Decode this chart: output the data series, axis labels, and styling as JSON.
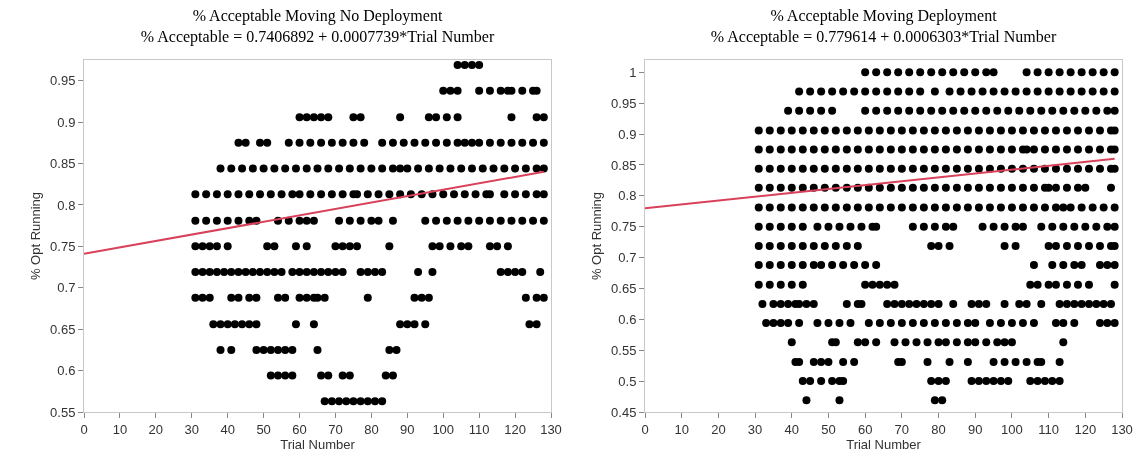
{
  "chart_data": [
    {
      "type": "scatter",
      "title": "% Acceptable Moving No Deployment",
      "subtitle": "% Acceptable = 0.7406892 + 0.0007739*Trial Number",
      "xlabel": "Trial Number",
      "ylabel": "% Opt Running",
      "marker": "circle",
      "legend": false,
      "grid": false,
      "xlim": [
        0,
        130
      ],
      "xticks": [
        0,
        10,
        20,
        30,
        40,
        50,
        60,
        70,
        80,
        90,
        100,
        110,
        120,
        130
      ],
      "ylim": [
        0.55,
        0.975
      ],
      "yticks": [
        0.55,
        0.6,
        0.65,
        0.7,
        0.75,
        0.8,
        0.85,
        0.9,
        0.95
      ],
      "series": [
        {
          "color": "#000000",
          "x": [
            104,
            106,
            108,
            110
          ],
          "values": [
            0.969,
            0.969,
            0.969,
            0.969
          ]
        },
        {
          "color": "#000000",
          "x": [
            100,
            102,
            104,
            110,
            113,
            116,
            118,
            119,
            122,
            125,
            126
          ],
          "values": [
            0.938,
            0.938,
            0.938,
            0.938,
            0.938,
            0.938,
            0.938,
            0.938,
            0.938,
            0.938,
            0.938
          ]
        },
        {
          "color": "#000000",
          "x": [
            60,
            62,
            64,
            66,
            68,
            75,
            77,
            88,
            96,
            98,
            101,
            104,
            119,
            126,
            128
          ],
          "values": [
            0.906,
            0.906,
            0.906,
            0.906,
            0.906,
            0.906,
            0.906,
            0.906,
            0.906,
            0.906,
            0.906,
            0.906,
            0.906,
            0.906,
            0.906
          ]
        },
        {
          "color": "#000000",
          "x": [
            43,
            45,
            49,
            51,
            57,
            60,
            63,
            66,
            69,
            72,
            75,
            78,
            83,
            86,
            89,
            92,
            95,
            98,
            101,
            104,
            106,
            108,
            110,
            113,
            116,
            119,
            122,
            125,
            128
          ],
          "values": [
            0.875,
            0.875,
            0.875,
            0.875,
            0.875,
            0.875,
            0.875,
            0.875,
            0.875,
            0.875,
            0.875,
            0.875,
            0.875,
            0.875,
            0.875,
            0.875,
            0.875,
            0.875,
            0.875,
            0.875,
            0.875,
            0.875,
            0.875,
            0.875,
            0.875,
            0.875,
            0.875,
            0.875,
            0.875
          ]
        },
        {
          "color": "#000000",
          "x": [
            38,
            41,
            44,
            47,
            50,
            53,
            56,
            59,
            62,
            65,
            68,
            71,
            74,
            77,
            80,
            83,
            86,
            88,
            90,
            93,
            96,
            99,
            102,
            105,
            108,
            111,
            114,
            117,
            120,
            123,
            126,
            128
          ],
          "values": [
            0.844,
            0.844,
            0.844,
            0.844,
            0.844,
            0.844,
            0.844,
            0.844,
            0.844,
            0.844,
            0.844,
            0.844,
            0.844,
            0.844,
            0.844,
            0.844,
            0.844,
            0.844,
            0.844,
            0.844,
            0.844,
            0.844,
            0.844,
            0.844,
            0.844,
            0.844,
            0.844,
            0.844,
            0.844,
            0.844,
            0.844,
            0.844
          ]
        },
        {
          "color": "#000000",
          "x": [
            31,
            34,
            37,
            40,
            43,
            46,
            49,
            52,
            55,
            58,
            60,
            63,
            66,
            69,
            72,
            75,
            76,
            79,
            82,
            85,
            88,
            91,
            94,
            97,
            100,
            103,
            106,
            109,
            112,
            113,
            117,
            120,
            123,
            126,
            128
          ],
          "values": [
            0.813,
            0.813,
            0.813,
            0.813,
            0.813,
            0.813,
            0.813,
            0.813,
            0.813,
            0.813,
            0.813,
            0.813,
            0.813,
            0.813,
            0.813,
            0.813,
            0.813,
            0.813,
            0.813,
            0.813,
            0.813,
            0.813,
            0.813,
            0.813,
            0.813,
            0.813,
            0.813,
            0.813,
            0.813,
            0.813,
            0.813,
            0.813,
            0.813,
            0.813,
            0.813
          ]
        },
        {
          "color": "#000000",
          "x": [
            31,
            34,
            37,
            40,
            43,
            46,
            48,
            54,
            57,
            60,
            62,
            64,
            71,
            74,
            77,
            80,
            82,
            86,
            95,
            98,
            101,
            104,
            107,
            110,
            113,
            116,
            119,
            122,
            125,
            128
          ],
          "values": [
            0.781,
            0.781,
            0.781,
            0.781,
            0.781,
            0.781,
            0.781,
            0.781,
            0.781,
            0.781,
            0.781,
            0.781,
            0.781,
            0.781,
            0.781,
            0.781,
            0.781,
            0.781,
            0.781,
            0.781,
            0.781,
            0.781,
            0.781,
            0.781,
            0.781,
            0.781,
            0.781,
            0.781,
            0.781,
            0.781
          ]
        },
        {
          "color": "#000000",
          "x": [
            31,
            33,
            35,
            37,
            40,
            51,
            53,
            59,
            62,
            70,
            72,
            74,
            76,
            85,
            97,
            99,
            102,
            105,
            107,
            113,
            115,
            118
          ],
          "values": [
            0.75,
            0.75,
            0.75,
            0.75,
            0.75,
            0.75,
            0.75,
            0.75,
            0.75,
            0.75,
            0.75,
            0.75,
            0.75,
            0.75,
            0.75,
            0.75,
            0.75,
            0.75,
            0.75,
            0.75,
            0.75,
            0.75
          ]
        },
        {
          "color": "#000000",
          "x": [
            31,
            33,
            35,
            37,
            39,
            41,
            43,
            45,
            47,
            49,
            51,
            53,
            55,
            58,
            60,
            62,
            64,
            66,
            68,
            70,
            72,
            77,
            79,
            81,
            83,
            93,
            97,
            116,
            118,
            120,
            122,
            127
          ],
          "values": [
            0.719,
            0.719,
            0.719,
            0.719,
            0.719,
            0.719,
            0.719,
            0.719,
            0.719,
            0.719,
            0.719,
            0.719,
            0.719,
            0.719,
            0.719,
            0.719,
            0.719,
            0.719,
            0.719,
            0.719,
            0.719,
            0.719,
            0.719,
            0.719,
            0.719,
            0.719,
            0.719,
            0.719,
            0.719,
            0.719,
            0.719,
            0.719
          ]
        },
        {
          "color": "#000000",
          "x": [
            31,
            33,
            35,
            41,
            43,
            46,
            48,
            54,
            56,
            60,
            62,
            64,
            65,
            67,
            79,
            92,
            94,
            96,
            123,
            126,
            128
          ],
          "values": [
            0.688,
            0.688,
            0.688,
            0.688,
            0.688,
            0.688,
            0.688,
            0.688,
            0.688,
            0.688,
            0.688,
            0.688,
            0.688,
            0.688,
            0.688,
            0.688,
            0.688,
            0.688,
            0.688,
            0.688,
            0.688
          ]
        },
        {
          "color": "#000000",
          "x": [
            36,
            38,
            40,
            42,
            44,
            46,
            48,
            59,
            64,
            88,
            90,
            92,
            95,
            124,
            126
          ],
          "values": [
            0.656,
            0.656,
            0.656,
            0.656,
            0.656,
            0.656,
            0.656,
            0.656,
            0.656,
            0.656,
            0.656,
            0.656,
            0.656,
            0.656,
            0.656
          ]
        },
        {
          "color": "#000000",
          "x": [
            38,
            41,
            48,
            50,
            52,
            54,
            56,
            58,
            65,
            85,
            87
          ],
          "values": [
            0.625,
            0.625,
            0.625,
            0.625,
            0.625,
            0.625,
            0.625,
            0.625,
            0.625,
            0.625,
            0.625
          ]
        },
        {
          "color": "#000000",
          "x": [
            52,
            54,
            56,
            58,
            66,
            68,
            72,
            74,
            84,
            86
          ],
          "values": [
            0.594,
            0.594,
            0.594,
            0.594,
            0.594,
            0.594,
            0.594,
            0.594,
            0.594,
            0.594
          ]
        },
        {
          "color": "#000000",
          "x": [
            67,
            69,
            71,
            73,
            75,
            77,
            79,
            81,
            83
          ],
          "values": [
            0.563,
            0.563,
            0.563,
            0.563,
            0.563,
            0.563,
            0.563,
            0.563,
            0.563
          ]
        },
        {
          "type": "line",
          "color": "#d9405a",
          "line_style": "solid",
          "marker": "none",
          "x": [
            0,
            128
          ],
          "values": [
            0.741,
            0.84
          ]
        }
      ]
    },
    {
      "type": "scatter",
      "title": "% Acceptable Moving Deployment",
      "subtitle": "% Acceptable = 0.779614 + 0.0006303*Trial Number",
      "xlabel": "Trial Number",
      "ylabel": "% Opt Running",
      "marker": "circle",
      "legend": false,
      "grid": false,
      "xlim": [
        0,
        130
      ],
      "xticks": [
        0,
        10,
        20,
        30,
        40,
        50,
        60,
        70,
        80,
        90,
        100,
        110,
        120,
        130
      ],
      "ylim": [
        0.45,
        1.02
      ],
      "yticks": [
        0.45,
        0.5,
        0.55,
        0.6,
        0.65,
        0.7,
        0.75,
        0.8,
        0.85,
        0.9,
        0.95,
        1
      ],
      "series": [
        {
          "color": "#000000",
          "x": [
            60,
            63,
            66,
            69,
            72,
            75,
            78,
            81,
            84,
            87,
            90,
            93,
            95,
            104,
            107,
            110,
            113,
            116,
            119,
            122,
            125,
            128
          ],
          "values": [
            1,
            1,
            1,
            1,
            1,
            1,
            1,
            1,
            1,
            1,
            1,
            1,
            1,
            1,
            1,
            1,
            1,
            1,
            1,
            1,
            1,
            1
          ]
        },
        {
          "color": "#000000",
          "x": [
            42,
            45,
            48,
            51,
            54,
            57,
            60,
            63,
            66,
            69,
            72,
            75,
            79,
            83,
            86,
            89,
            92,
            95,
            98,
            101,
            104,
            107,
            110,
            113,
            116,
            119,
            122,
            125,
            128
          ],
          "values": [
            0.969,
            0.969,
            0.969,
            0.969,
            0.969,
            0.969,
            0.969,
            0.969,
            0.969,
            0.969,
            0.969,
            0.969,
            0.969,
            0.969,
            0.969,
            0.969,
            0.969,
            0.969,
            0.969,
            0.969,
            0.969,
            0.969,
            0.969,
            0.969,
            0.969,
            0.969,
            0.969,
            0.969,
            0.969
          ]
        },
        {
          "color": "#000000",
          "x": [
            39,
            42,
            45,
            48,
            51,
            60,
            63,
            66,
            69,
            72,
            75,
            78,
            81,
            84,
            87,
            90,
            93,
            96,
            99,
            102,
            105,
            108,
            111,
            114,
            117,
            120,
            123,
            126,
            128
          ],
          "values": [
            0.938,
            0.938,
            0.938,
            0.938,
            0.938,
            0.938,
            0.938,
            0.938,
            0.938,
            0.938,
            0.938,
            0.938,
            0.938,
            0.938,
            0.938,
            0.938,
            0.938,
            0.938,
            0.938,
            0.938,
            0.938,
            0.938,
            0.938,
            0.938,
            0.938,
            0.938,
            0.938,
            0.938,
            0.938
          ]
        },
        {
          "color": "#000000",
          "x": [
            31,
            34,
            37,
            40,
            43,
            46,
            49,
            52,
            55,
            58,
            61,
            64,
            67,
            70,
            73,
            76,
            79,
            82,
            85,
            88,
            91,
            94,
            97,
            100,
            103,
            106,
            109,
            112,
            115,
            118,
            121,
            124,
            127,
            128
          ],
          "values": [
            0.906,
            0.906,
            0.906,
            0.906,
            0.906,
            0.906,
            0.906,
            0.906,
            0.906,
            0.906,
            0.906,
            0.906,
            0.906,
            0.906,
            0.906,
            0.906,
            0.906,
            0.906,
            0.906,
            0.906,
            0.906,
            0.906,
            0.906,
            0.906,
            0.906,
            0.906,
            0.906,
            0.906,
            0.906,
            0.906,
            0.906,
            0.906,
            0.906,
            0.906
          ]
        },
        {
          "color": "#000000",
          "x": [
            31,
            34,
            37,
            40,
            43,
            46,
            49,
            52,
            55,
            58,
            61,
            64,
            67,
            70,
            73,
            76,
            79,
            82,
            85,
            88,
            91,
            94,
            97,
            100,
            103,
            104,
            106,
            109,
            112,
            115,
            118,
            121,
            124,
            127,
            128
          ],
          "values": [
            0.875,
            0.875,
            0.875,
            0.875,
            0.875,
            0.875,
            0.875,
            0.875,
            0.875,
            0.875,
            0.875,
            0.875,
            0.875,
            0.875,
            0.875,
            0.875,
            0.875,
            0.875,
            0.875,
            0.875,
            0.875,
            0.875,
            0.875,
            0.875,
            0.875,
            0.875,
            0.875,
            0.875,
            0.875,
            0.875,
            0.875,
            0.875,
            0.875,
            0.875,
            0.875
          ]
        },
        {
          "color": "#000000",
          "x": [
            31,
            34,
            37,
            40,
            43,
            46,
            49,
            52,
            55,
            58,
            61,
            64,
            67,
            70,
            73,
            76,
            79,
            82,
            85,
            88,
            91,
            94,
            97,
            100,
            103,
            106,
            109,
            112,
            115,
            118,
            121,
            124,
            127,
            128
          ],
          "values": [
            0.844,
            0.844,
            0.844,
            0.844,
            0.844,
            0.844,
            0.844,
            0.844,
            0.844,
            0.844,
            0.844,
            0.844,
            0.844,
            0.844,
            0.844,
            0.844,
            0.844,
            0.844,
            0.844,
            0.844,
            0.844,
            0.844,
            0.844,
            0.844,
            0.844,
            0.844,
            0.844,
            0.844,
            0.844,
            0.844,
            0.844,
            0.844,
            0.844,
            0.844
          ]
        },
        {
          "color": "#000000",
          "x": [
            31,
            34,
            37,
            40,
            43,
            46,
            49,
            52,
            55,
            58,
            61,
            64,
            67,
            70,
            73,
            76,
            79,
            82,
            85,
            88,
            91,
            94,
            97,
            100,
            103,
            106,
            109,
            110,
            112,
            115,
            118,
            120,
            127
          ],
          "values": [
            0.813,
            0.813,
            0.813,
            0.813,
            0.813,
            0.813,
            0.813,
            0.813,
            0.813,
            0.813,
            0.813,
            0.813,
            0.813,
            0.813,
            0.813,
            0.813,
            0.813,
            0.813,
            0.813,
            0.813,
            0.813,
            0.813,
            0.813,
            0.813,
            0.813,
            0.813,
            0.813,
            0.813,
            0.813,
            0.813,
            0.813,
            0.813,
            0.813
          ]
        },
        {
          "color": "#000000",
          "x": [
            31,
            34,
            37,
            40,
            43,
            46,
            49,
            52,
            55,
            58,
            61,
            64,
            67,
            70,
            73,
            76,
            79,
            82,
            85,
            88,
            91,
            94,
            97,
            100,
            103,
            106,
            109,
            112,
            114,
            116,
            119,
            122,
            125,
            128
          ],
          "values": [
            0.781,
            0.781,
            0.781,
            0.781,
            0.781,
            0.781,
            0.781,
            0.781,
            0.781,
            0.781,
            0.781,
            0.781,
            0.781,
            0.781,
            0.781,
            0.781,
            0.781,
            0.781,
            0.781,
            0.781,
            0.781,
            0.781,
            0.781,
            0.781,
            0.781,
            0.781,
            0.781,
            0.781,
            0.781,
            0.781,
            0.781,
            0.781,
            0.781,
            0.781
          ]
        },
        {
          "color": "#000000",
          "x": [
            31,
            34,
            37,
            40,
            43,
            47,
            50,
            53,
            56,
            59,
            62,
            63,
            73,
            76,
            79,
            82,
            84,
            92,
            95,
            98,
            101,
            103,
            108,
            111,
            114,
            117,
            120,
            123,
            126,
            128
          ],
          "values": [
            0.75,
            0.75,
            0.75,
            0.75,
            0.75,
            0.75,
            0.75,
            0.75,
            0.75,
            0.75,
            0.75,
            0.75,
            0.75,
            0.75,
            0.75,
            0.75,
            0.75,
            0.75,
            0.75,
            0.75,
            0.75,
            0.75,
            0.75,
            0.75,
            0.75,
            0.75,
            0.75,
            0.75,
            0.75,
            0.75
          ]
        },
        {
          "color": "#000000",
          "x": [
            31,
            34,
            37,
            40,
            43,
            46,
            49,
            52,
            55,
            58,
            78,
            80,
            83,
            98,
            101,
            110,
            112,
            115,
            118,
            121,
            124,
            127,
            128
          ],
          "values": [
            0.719,
            0.719,
            0.719,
            0.719,
            0.719,
            0.719,
            0.719,
            0.719,
            0.719,
            0.719,
            0.719,
            0.719,
            0.719,
            0.719,
            0.719,
            0.719,
            0.719,
            0.719,
            0.719,
            0.719,
            0.719,
            0.719,
            0.719
          ]
        },
        {
          "color": "#000000",
          "x": [
            31,
            34,
            37,
            40,
            43,
            46,
            48,
            51,
            54,
            57,
            60,
            63,
            106,
            111,
            114,
            117,
            119,
            124,
            126,
            128
          ],
          "values": [
            0.688,
            0.688,
            0.688,
            0.688,
            0.688,
            0.688,
            0.688,
            0.688,
            0.688,
            0.688,
            0.688,
            0.688,
            0.688,
            0.688,
            0.688,
            0.688,
            0.688,
            0.688,
            0.688,
            0.688
          ]
        },
        {
          "color": "#000000",
          "x": [
            31,
            34,
            37,
            40,
            43,
            60,
            62,
            64,
            66,
            68,
            105,
            107,
            110,
            112,
            115,
            118,
            121,
            128
          ],
          "values": [
            0.656,
            0.656,
            0.656,
            0.656,
            0.656,
            0.656,
            0.656,
            0.656,
            0.656,
            0.656,
            0.656,
            0.656,
            0.656,
            0.656,
            0.656,
            0.656,
            0.656,
            0.656
          ]
        },
        {
          "color": "#000000",
          "x": [
            32,
            35,
            37,
            39,
            41,
            42,
            44,
            46,
            55,
            58,
            59,
            66,
            68,
            70,
            72,
            74,
            76,
            78,
            80,
            84,
            89,
            91,
            93,
            98,
            102,
            104,
            108,
            113,
            115,
            117,
            119,
            121,
            123,
            125,
            127
          ],
          "values": [
            0.625,
            0.625,
            0.625,
            0.625,
            0.625,
            0.625,
            0.625,
            0.625,
            0.625,
            0.625,
            0.625,
            0.625,
            0.625,
            0.625,
            0.625,
            0.625,
            0.625,
            0.625,
            0.625,
            0.625,
            0.625,
            0.625,
            0.625,
            0.625,
            0.625,
            0.625,
            0.625,
            0.625,
            0.625,
            0.625,
            0.625,
            0.625,
            0.625,
            0.625,
            0.625
          ]
        },
        {
          "color": "#000000",
          "x": [
            33,
            35,
            37,
            39,
            42,
            47,
            50,
            53,
            56,
            61,
            64,
            67,
            70,
            73,
            76,
            79,
            82,
            85,
            88,
            90,
            94,
            97,
            100,
            103,
            106,
            112,
            114,
            117,
            124,
            126,
            128
          ],
          "values": [
            0.594,
            0.594,
            0.594,
            0.594,
            0.594,
            0.594,
            0.594,
            0.594,
            0.594,
            0.594,
            0.594,
            0.594,
            0.594,
            0.594,
            0.594,
            0.594,
            0.594,
            0.594,
            0.594,
            0.594,
            0.594,
            0.594,
            0.594,
            0.594,
            0.594,
            0.594,
            0.594,
            0.594,
            0.594,
            0.594,
            0.594
          ]
        },
        {
          "color": "#000000",
          "x": [
            40,
            51,
            52,
            58,
            60,
            63,
            68,
            71,
            74,
            77,
            80,
            82,
            85,
            88,
            90,
            93,
            96,
            98,
            100,
            114
          ],
          "values": [
            0.563,
            0.563,
            0.563,
            0.563,
            0.563,
            0.563,
            0.563,
            0.563,
            0.563,
            0.563,
            0.563,
            0.563,
            0.563,
            0.563,
            0.563,
            0.563,
            0.563,
            0.563,
            0.563,
            0.563
          ]
        },
        {
          "color": "#000000",
          "x": [
            41,
            42,
            46,
            48,
            50,
            54,
            57,
            69,
            70,
            77,
            83,
            88,
            95,
            98,
            101,
            104,
            107,
            108,
            113
          ],
          "values": [
            0.531,
            0.531,
            0.531,
            0.531,
            0.531,
            0.531,
            0.531,
            0.531,
            0.531,
            0.531,
            0.531,
            0.531,
            0.531,
            0.531,
            0.531,
            0.531,
            0.531,
            0.531,
            0.531
          ]
        },
        {
          "color": "#000000",
          "x": [
            43,
            45,
            48,
            51,
            53,
            54,
            78,
            80,
            82,
            89,
            91,
            93,
            95,
            97,
            99,
            105,
            107,
            109,
            111,
            113
          ],
          "values": [
            0.5,
            0.5,
            0.5,
            0.5,
            0.5,
            0.5,
            0.5,
            0.5,
            0.5,
            0.5,
            0.5,
            0.5,
            0.5,
            0.5,
            0.5,
            0.5,
            0.5,
            0.5,
            0.5,
            0.5
          ]
        },
        {
          "color": "#000000",
          "x": [
            44,
            53,
            79,
            81
          ],
          "values": [
            0.469,
            0.469,
            0.469,
            0.469
          ]
        },
        {
          "type": "line",
          "color": "#d9405a",
          "line_style": "solid",
          "marker": "none",
          "x": [
            0,
            128
          ],
          "values": [
            0.78,
            0.86
          ]
        }
      ]
    }
  ]
}
